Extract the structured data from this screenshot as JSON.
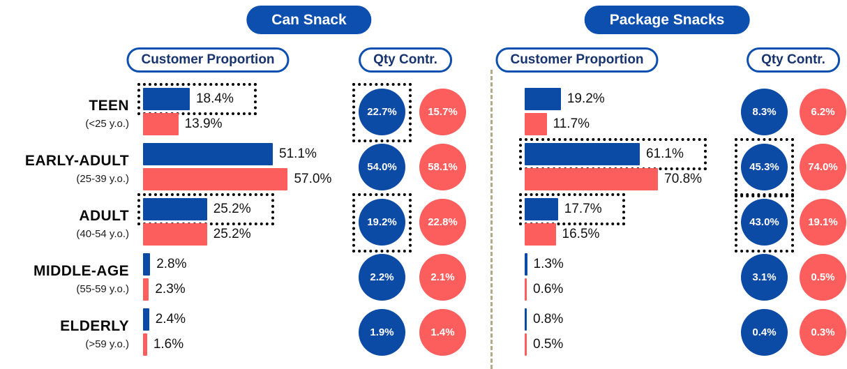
{
  "colors": {
    "blue": "#0b4aa5",
    "red": "#fc5d5d",
    "pill_blue": "#0d4fae",
    "outline_pill_text": "#17346f",
    "divider": "#b3ab85",
    "highlight_border": "#000000"
  },
  "age_groups": [
    {
      "name": "TEEN",
      "range": "(<25 y.o.)"
    },
    {
      "name": "EARLY-ADULT",
      "range": "(25-39 y.o.)"
    },
    {
      "name": "ADULT",
      "range": "(40-54 y.o.)"
    },
    {
      "name": "MIDDLE-AGE",
      "range": "(55-59 y.o.)"
    },
    {
      "name": "ELDERLY",
      "range": "(>59 y.o.)"
    }
  ],
  "panels": [
    {
      "title": "Can Snack",
      "customer_header": "Customer Proportion",
      "qty_header": "Qty Contr.",
      "rows": [
        {
          "cp_blue": {
            "label": "18.4%",
            "value": 18.4,
            "highlight": true
          },
          "cp_red": {
            "label": "13.9%",
            "value": 13.9,
            "highlight": false
          },
          "qty_blue": {
            "label": "22.7%",
            "value": 22.7,
            "highlight": true
          },
          "qty_red": {
            "label": "15.7%",
            "value": 15.7,
            "highlight": false
          }
        },
        {
          "cp_blue": {
            "label": "51.1%",
            "value": 51.1,
            "highlight": false
          },
          "cp_red": {
            "label": "57.0%",
            "value": 57.0,
            "highlight": false
          },
          "qty_blue": {
            "label": "54.0%",
            "value": 54.0,
            "highlight": false
          },
          "qty_red": {
            "label": "58.1%",
            "value": 58.1,
            "highlight": false
          }
        },
        {
          "cp_blue": {
            "label": "25.2%",
            "value": 25.2,
            "highlight": true
          },
          "cp_red": {
            "label": "25.2%",
            "value": 25.2,
            "highlight": false
          },
          "qty_blue": {
            "label": "19.2%",
            "value": 19.2,
            "highlight": true
          },
          "qty_red": {
            "label": "22.8%",
            "value": 22.8,
            "highlight": false
          }
        },
        {
          "cp_blue": {
            "label": "2.8%",
            "value": 2.8,
            "highlight": false
          },
          "cp_red": {
            "label": "2.3%",
            "value": 2.3,
            "highlight": false
          },
          "qty_blue": {
            "label": "2.2%",
            "value": 2.2,
            "highlight": false
          },
          "qty_red": {
            "label": "2.1%",
            "value": 2.1,
            "highlight": false
          }
        },
        {
          "cp_blue": {
            "label": "2.4%",
            "value": 2.4,
            "highlight": false
          },
          "cp_red": {
            "label": "1.6%",
            "value": 1.6,
            "highlight": false
          },
          "qty_blue": {
            "label": "1.9%",
            "value": 1.9,
            "highlight": false
          },
          "qty_red": {
            "label": "1.4%",
            "value": 1.4,
            "highlight": false
          }
        }
      ]
    },
    {
      "title": "Package Snacks",
      "customer_header": "Customer Proportion",
      "qty_header": "Qty Contr.",
      "rows": [
        {
          "cp_blue": {
            "label": "19.2%",
            "value": 19.2,
            "highlight": false
          },
          "cp_red": {
            "label": "11.7%",
            "value": 11.7,
            "highlight": false
          },
          "qty_blue": {
            "label": "8.3%",
            "value": 8.3,
            "highlight": false
          },
          "qty_red": {
            "label": "6.2%",
            "value": 6.2,
            "highlight": false
          }
        },
        {
          "cp_blue": {
            "label": "61.1%",
            "value": 61.1,
            "highlight": true
          },
          "cp_red": {
            "label": "70.8%",
            "value": 70.8,
            "highlight": false
          },
          "qty_blue": {
            "label": "45.3%",
            "value": 45.3,
            "highlight": true
          },
          "qty_red": {
            "label": "74.0%",
            "value": 74.0,
            "highlight": false
          }
        },
        {
          "cp_blue": {
            "label": "17.7%",
            "value": 17.7,
            "highlight": true
          },
          "cp_red": {
            "label": "16.5%",
            "value": 16.5,
            "highlight": false
          },
          "qty_blue": {
            "label": "43.0%",
            "value": 43.0,
            "highlight": true
          },
          "qty_red": {
            "label": "19.1%",
            "value": 19.1,
            "highlight": false
          }
        },
        {
          "cp_blue": {
            "label": "1.3%",
            "value": 1.3,
            "highlight": false
          },
          "cp_red": {
            "label": "0.6%",
            "value": 0.6,
            "highlight": false
          },
          "qty_blue": {
            "label": "3.1%",
            "value": 3.1,
            "highlight": false
          },
          "qty_red": {
            "label": "0.5%",
            "value": 0.5,
            "highlight": false
          }
        },
        {
          "cp_blue": {
            "label": "0.8%",
            "value": 0.8,
            "highlight": false
          },
          "cp_red": {
            "label": "0.5%",
            "value": 0.5,
            "highlight": false
          },
          "qty_blue": {
            "label": "0.4%",
            "value": 0.4,
            "highlight": false
          },
          "qty_red": {
            "label": "0.3%",
            "value": 0.3,
            "highlight": false
          }
        }
      ]
    }
  ],
  "chart_data": [
    {
      "type": "bar",
      "title": "Can Snack",
      "categories": [
        "TEEN (<25 y.o.)",
        "EARLY-ADULT (25-39 y.o.)",
        "ADULT (40-54 y.o.)",
        "MIDDLE-AGE (55-59 y.o.)",
        "ELDERLY (>59 y.o.)"
      ],
      "series": [
        {
          "name": "Customer Proportion (blue)",
          "values": [
            18.4,
            51.1,
            25.2,
            2.8,
            2.4
          ]
        },
        {
          "name": "Customer Proportion (red)",
          "values": [
            13.9,
            57.0,
            25.2,
            2.3,
            1.6
          ]
        },
        {
          "name": "Qty Contr. (blue)",
          "values": [
            22.7,
            54.0,
            19.2,
            2.2,
            1.9
          ]
        },
        {
          "name": "Qty Contr. (red)",
          "values": [
            15.7,
            58.1,
            22.8,
            2.1,
            1.4
          ]
        }
      ],
      "highlighted_categories_blue": [
        "TEEN",
        "ADULT"
      ],
      "xlabel": "",
      "ylabel": "",
      "unit": "%",
      "grid": false,
      "legend": false
    },
    {
      "type": "bar",
      "title": "Package Snacks",
      "categories": [
        "TEEN (<25 y.o.)",
        "EARLY-ADULT (25-39 y.o.)",
        "ADULT (40-54 y.o.)",
        "MIDDLE-AGE (55-59 y.o.)",
        "ELDERLY (>59 y.o.)"
      ],
      "series": [
        {
          "name": "Customer Proportion (blue)",
          "values": [
            19.2,
            61.1,
            17.7,
            1.3,
            0.8
          ]
        },
        {
          "name": "Customer Proportion (red)",
          "values": [
            11.7,
            70.8,
            16.5,
            0.6,
            0.5
          ]
        },
        {
          "name": "Qty Contr. (blue)",
          "values": [
            8.3,
            45.3,
            43.0,
            3.1,
            0.4
          ]
        },
        {
          "name": "Qty Contr. (red)",
          "values": [
            6.2,
            74.0,
            19.1,
            0.5,
            0.3
          ]
        }
      ],
      "highlighted_categories_blue": [
        "EARLY-ADULT",
        "ADULT"
      ],
      "xlabel": "",
      "ylabel": "",
      "unit": "%",
      "grid": false,
      "legend": false
    }
  ]
}
